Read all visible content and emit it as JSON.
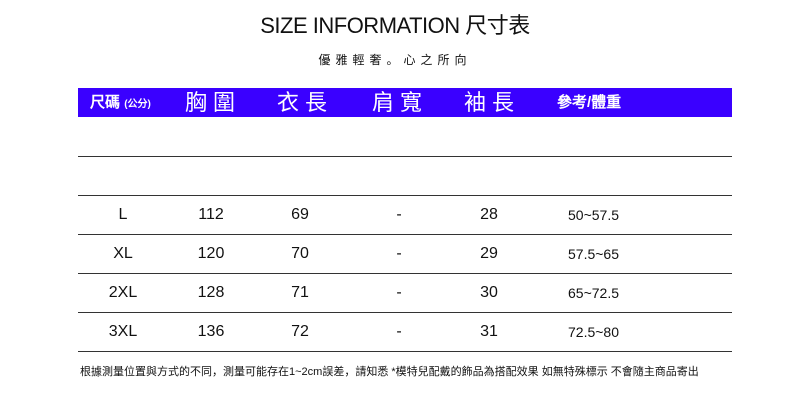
{
  "title": "SIZE INFORMATION 尺寸表",
  "subtitle": "優雅輕奢。心之所向",
  "header_color": "#3a00ff",
  "columns": {
    "size": "尺碼",
    "size_unit": "(公分)",
    "chest": "胸圍",
    "length": "衣長",
    "shoulder": "肩寬",
    "sleeve": "袖長",
    "weight": "參考/體重"
  },
  "rows": [
    {
      "size": "L",
      "chest": "112",
      "length": "69",
      "shoulder": "-",
      "sleeve": "28",
      "weight": "50~57.5"
    },
    {
      "size": "XL",
      "chest": "120",
      "length": "70",
      "shoulder": "-",
      "sleeve": "29",
      "weight": "57.5~65"
    },
    {
      "size": "2XL",
      "chest": "128",
      "length": "71",
      "shoulder": "-",
      "sleeve": "30",
      "weight": "65~72.5"
    },
    {
      "size": "3XL",
      "chest": "136",
      "length": "72",
      "shoulder": "-",
      "sleeve": "31",
      "weight": "72.5~80"
    }
  ],
  "note": "根據測量位置與方式的不同，測量可能存在1~2cm誤差，請知悉 *模特兒配戴的飾品為搭配效果 如無特殊標示 不會隨主商品寄出"
}
